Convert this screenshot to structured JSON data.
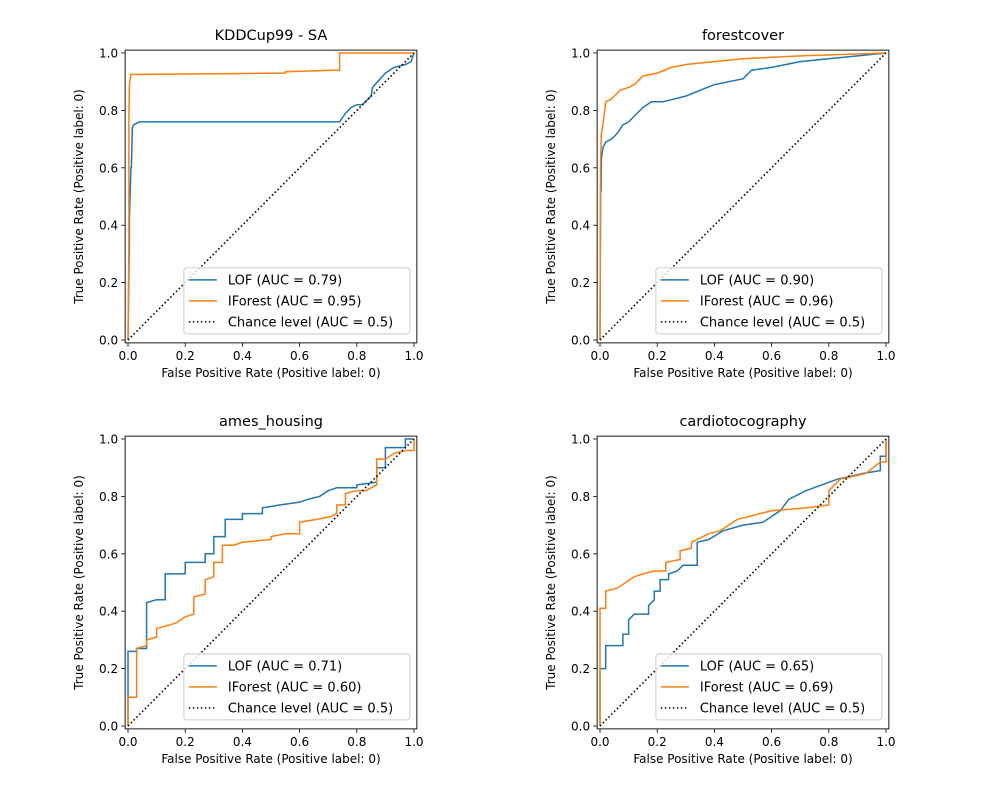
{
  "colors": {
    "LOF": "#1f77b4",
    "IForest": "#ff7f0e",
    "chance": "#000000"
  },
  "chart_data": [
    {
      "type": "line",
      "title": "KDDCup99 - SA",
      "xlabel": "False Positive Rate (Positive label: 0)",
      "ylabel": "True Positive Rate (Positive label: 0)",
      "xlim": [
        -0.01,
        1.01
      ],
      "ylim": [
        -0.01,
        1.01
      ],
      "xticks": [
        "0.0",
        "0.2",
        "0.4",
        "0.6",
        "0.8",
        "1.0"
      ],
      "yticks": [
        "0.0",
        "0.2",
        "0.4",
        "0.6",
        "0.8",
        "1.0"
      ],
      "legend_position": "lower-right",
      "series": [
        {
          "name": "LOF (AUC = 0.79)",
          "color": "#1f77b4",
          "points": [
            [
              0,
              0
            ],
            [
              0.005,
              0.35
            ],
            [
              0.005,
              0.42
            ],
            [
              0.01,
              0.6
            ],
            [
              0.012,
              0.6
            ],
            [
              0.015,
              0.74
            ],
            [
              0.02,
              0.75
            ],
            [
              0.04,
              0.76
            ],
            [
              0.13,
              0.76
            ],
            [
              0.74,
              0.76
            ],
            [
              0.76,
              0.79
            ],
            [
              0.78,
              0.81
            ],
            [
              0.8,
              0.82
            ],
            [
              0.82,
              0.82
            ],
            [
              0.85,
              0.85
            ],
            [
              0.855,
              0.88
            ],
            [
              0.9,
              0.93
            ],
            [
              0.93,
              0.95
            ],
            [
              0.97,
              0.96
            ],
            [
              0.99,
              0.97
            ],
            [
              1,
              1
            ]
          ]
        },
        {
          "name": "IForest (AUC = 0.95)",
          "color": "#ff7f0e",
          "points": [
            [
              0,
              0
            ],
            [
              0.003,
              0.35
            ],
            [
              0.003,
              0.78
            ],
            [
              0.005,
              0.89
            ],
            [
              0.01,
              0.925
            ],
            [
              0.55,
              0.93
            ],
            [
              0.55,
              0.935
            ],
            [
              0.72,
              0.94
            ],
            [
              0.74,
              0.94
            ],
            [
              0.74,
              1
            ],
            [
              1,
              1
            ]
          ]
        },
        {
          "name": "Chance level (AUC = 0.5)",
          "color": "#000000",
          "dotted": true,
          "points": [
            [
              0,
              0
            ],
            [
              1,
              1
            ]
          ]
        }
      ]
    },
    {
      "type": "line",
      "title": "forestcover",
      "xlabel": "False Positive Rate (Positive label: 0)",
      "ylabel": "True Positive Rate (Positive label: 0)",
      "xlim": [
        -0.01,
        1.01
      ],
      "ylim": [
        -0.01,
        1.01
      ],
      "xticks": [
        "0.0",
        "0.2",
        "0.4",
        "0.6",
        "0.8",
        "1.0"
      ],
      "yticks": [
        "0.0",
        "0.2",
        "0.4",
        "0.6",
        "0.8",
        "1.0"
      ],
      "legend_position": "lower-right",
      "series": [
        {
          "name": "LOF (AUC = 0.90)",
          "color": "#1f77b4",
          "points": [
            [
              0,
              0
            ],
            [
              0.002,
              0.52
            ],
            [
              0.004,
              0.52
            ],
            [
              0.005,
              0.63
            ],
            [
              0.01,
              0.67
            ],
            [
              0.02,
              0.69
            ],
            [
              0.04,
              0.7
            ],
            [
              0.06,
              0.72
            ],
            [
              0.08,
              0.75
            ],
            [
              0.1,
              0.76
            ],
            [
              0.12,
              0.78
            ],
            [
              0.15,
              0.81
            ],
            [
              0.18,
              0.83
            ],
            [
              0.22,
              0.83
            ],
            [
              0.3,
              0.85
            ],
            [
              0.35,
              0.87
            ],
            [
              0.4,
              0.89
            ],
            [
              0.45,
              0.9
            ],
            [
              0.5,
              0.91
            ],
            [
              0.53,
              0.94
            ],
            [
              0.6,
              0.95
            ],
            [
              0.7,
              0.97
            ],
            [
              0.8,
              0.98
            ],
            [
              0.9,
              0.99
            ],
            [
              1,
              1
            ]
          ]
        },
        {
          "name": "IForest (AUC = 0.96)",
          "color": "#ff7f0e",
          "points": [
            [
              0,
              0
            ],
            [
              0.002,
              0.62
            ],
            [
              0.005,
              0.72
            ],
            [
              0.01,
              0.75
            ],
            [
              0.015,
              0.79
            ],
            [
              0.02,
              0.83
            ],
            [
              0.04,
              0.84
            ],
            [
              0.07,
              0.87
            ],
            [
              0.1,
              0.88
            ],
            [
              0.12,
              0.89
            ],
            [
              0.15,
              0.92
            ],
            [
              0.2,
              0.93
            ],
            [
              0.25,
              0.95
            ],
            [
              0.3,
              0.96
            ],
            [
              0.4,
              0.97
            ],
            [
              0.5,
              0.98
            ],
            [
              0.7,
              0.99
            ],
            [
              1,
              1
            ]
          ]
        },
        {
          "name": "Chance level (AUC = 0.5)",
          "color": "#000000",
          "dotted": true,
          "points": [
            [
              0,
              0
            ],
            [
              1,
              1
            ]
          ]
        }
      ]
    },
    {
      "type": "line",
      "title": "ames_housing",
      "xlabel": "False Positive Rate (Positive label: 0)",
      "ylabel": "True Positive Rate (Positive label: 0)",
      "xlim": [
        -0.01,
        1.01
      ],
      "ylim": [
        -0.01,
        1.01
      ],
      "xticks": [
        "0.0",
        "0.2",
        "0.4",
        "0.6",
        "0.8",
        "1.0"
      ],
      "yticks": [
        "0.0",
        "0.2",
        "0.4",
        "0.6",
        "0.8",
        "1.0"
      ],
      "legend_position": "lower-right",
      "series": [
        {
          "name": "LOF (AUC = 0.71)",
          "color": "#1f77b4",
          "points": [
            [
              0,
              0
            ],
            [
              0,
              0.26
            ],
            [
              0.03,
              0.26
            ],
            [
              0.03,
              0.27
            ],
            [
              0.065,
              0.27
            ],
            [
              0.065,
              0.43
            ],
            [
              0.1,
              0.44
            ],
            [
              0.13,
              0.44
            ],
            [
              0.13,
              0.53
            ],
            [
              0.2,
              0.53
            ],
            [
              0.2,
              0.57
            ],
            [
              0.27,
              0.57
            ],
            [
              0.27,
              0.6
            ],
            [
              0.3,
              0.6
            ],
            [
              0.3,
              0.66
            ],
            [
              0.34,
              0.66
            ],
            [
              0.34,
              0.72
            ],
            [
              0.4,
              0.72
            ],
            [
              0.4,
              0.74
            ],
            [
              0.47,
              0.74
            ],
            [
              0.47,
              0.76
            ],
            [
              0.53,
              0.77
            ],
            [
              0.6,
              0.78
            ],
            [
              0.63,
              0.79
            ],
            [
              0.67,
              0.8
            ],
            [
              0.7,
              0.82
            ],
            [
              0.73,
              0.83
            ],
            [
              0.8,
              0.83
            ],
            [
              0.8,
              0.84
            ],
            [
              0.87,
              0.85
            ],
            [
              0.87,
              0.9
            ],
            [
              0.9,
              0.9
            ],
            [
              0.9,
              0.97
            ],
            [
              0.97,
              0.97
            ],
            [
              0.97,
              1
            ],
            [
              1,
              1
            ]
          ]
        },
        {
          "name": "IForest (AUC = 0.60)",
          "color": "#ff7f0e",
          "points": [
            [
              0,
              0
            ],
            [
              0,
              0.1
            ],
            [
              0.03,
              0.1
            ],
            [
              0.03,
              0.27
            ],
            [
              0.065,
              0.28
            ],
            [
              0.065,
              0.3
            ],
            [
              0.1,
              0.31
            ],
            [
              0.1,
              0.34
            ],
            [
              0.14,
              0.35
            ],
            [
              0.17,
              0.36
            ],
            [
              0.2,
              0.38
            ],
            [
              0.23,
              0.39
            ],
            [
              0.23,
              0.45
            ],
            [
              0.27,
              0.46
            ],
            [
              0.27,
              0.51
            ],
            [
              0.3,
              0.52
            ],
            [
              0.3,
              0.57
            ],
            [
              0.33,
              0.57
            ],
            [
              0.33,
              0.63
            ],
            [
              0.37,
              0.63
            ],
            [
              0.4,
              0.64
            ],
            [
              0.5,
              0.65
            ],
            [
              0.5,
              0.66
            ],
            [
              0.55,
              0.67
            ],
            [
              0.6,
              0.67
            ],
            [
              0.6,
              0.71
            ],
            [
              0.66,
              0.72
            ],
            [
              0.71,
              0.73
            ],
            [
              0.73,
              0.74
            ],
            [
              0.73,
              0.77
            ],
            [
              0.76,
              0.77
            ],
            [
              0.76,
              0.81
            ],
            [
              0.8,
              0.82
            ],
            [
              0.83,
              0.82
            ],
            [
              0.87,
              0.84
            ],
            [
              0.87,
              0.93
            ],
            [
              0.9,
              0.93
            ],
            [
              0.93,
              0.95
            ],
            [
              0.97,
              0.96
            ],
            [
              1,
              0.96
            ],
            [
              1,
              1
            ]
          ]
        },
        {
          "name": "Chance level (AUC = 0.5)",
          "color": "#000000",
          "dotted": true,
          "points": [
            [
              0,
              0
            ],
            [
              1,
              1
            ]
          ]
        }
      ]
    },
    {
      "type": "line",
      "title": "cardiotocography",
      "xlabel": "False Positive Rate (Positive label: 0)",
      "ylabel": "True Positive Rate (Positive label: 0)",
      "xlim": [
        -0.01,
        1.01
      ],
      "ylim": [
        -0.01,
        1.01
      ],
      "xticks": [
        "0.0",
        "0.2",
        "0.4",
        "0.6",
        "0.8",
        "1.0"
      ],
      "yticks": [
        "0.0",
        "0.2",
        "0.4",
        "0.6",
        "0.8",
        "1.0"
      ],
      "legend_position": "lower-right",
      "series": [
        {
          "name": "LOF (AUC = 0.65)",
          "color": "#1f77b4",
          "points": [
            [
              0,
              0
            ],
            [
              0,
              0.2
            ],
            [
              0.02,
              0.2
            ],
            [
              0.02,
              0.28
            ],
            [
              0.08,
              0.28
            ],
            [
              0.08,
              0.32
            ],
            [
              0.1,
              0.32
            ],
            [
              0.1,
              0.37
            ],
            [
              0.12,
              0.39
            ],
            [
              0.17,
              0.39
            ],
            [
              0.17,
              0.42
            ],
            [
              0.19,
              0.44
            ],
            [
              0.19,
              0.47
            ],
            [
              0.21,
              0.47
            ],
            [
              0.21,
              0.51
            ],
            [
              0.24,
              0.51
            ],
            [
              0.24,
              0.53
            ],
            [
              0.27,
              0.54
            ],
            [
              0.29,
              0.56
            ],
            [
              0.34,
              0.56
            ],
            [
              0.34,
              0.64
            ],
            [
              0.38,
              0.65
            ],
            [
              0.43,
              0.68
            ],
            [
              0.5,
              0.7
            ],
            [
              0.57,
              0.71
            ],
            [
              0.63,
              0.75
            ],
            [
              0.66,
              0.79
            ],
            [
              0.72,
              0.82
            ],
            [
              0.83,
              0.86
            ],
            [
              0.92,
              0.88
            ],
            [
              0.98,
              0.89
            ],
            [
              0.98,
              0.94
            ],
            [
              1,
              0.94
            ],
            [
              1,
              1
            ]
          ]
        },
        {
          "name": "IForest (AUC = 0.69)",
          "color": "#ff7f0e",
          "points": [
            [
              0,
              0
            ],
            [
              0,
              0.41
            ],
            [
              0.02,
              0.41
            ],
            [
              0.02,
              0.47
            ],
            [
              0.06,
              0.48
            ],
            [
              0.09,
              0.5
            ],
            [
              0.12,
              0.52
            ],
            [
              0.15,
              0.53
            ],
            [
              0.19,
              0.54
            ],
            [
              0.23,
              0.54
            ],
            [
              0.23,
              0.57
            ],
            [
              0.28,
              0.58
            ],
            [
              0.28,
              0.61
            ],
            [
              0.32,
              0.62
            ],
            [
              0.32,
              0.64
            ],
            [
              0.38,
              0.67
            ],
            [
              0.42,
              0.68
            ],
            [
              0.48,
              0.72
            ],
            [
              0.6,
              0.75
            ],
            [
              0.72,
              0.76
            ],
            [
              0.8,
              0.77
            ],
            [
              0.8,
              0.82
            ],
            [
              0.84,
              0.86
            ],
            [
              0.93,
              0.88
            ],
            [
              0.98,
              0.92
            ],
            [
              1,
              0.92
            ],
            [
              1,
              1
            ]
          ]
        },
        {
          "name": "Chance level (AUC = 0.5)",
          "color": "#000000",
          "dotted": true,
          "points": [
            [
              0,
              0
            ],
            [
              1,
              1
            ]
          ]
        }
      ]
    }
  ]
}
